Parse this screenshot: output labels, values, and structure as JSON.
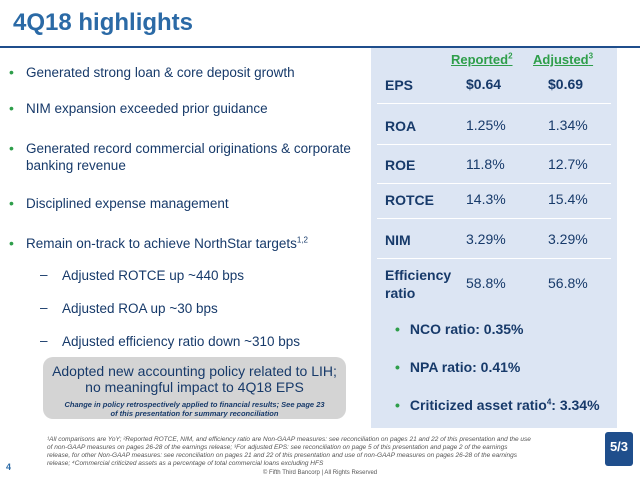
{
  "title": "4Q18 highlights",
  "bullets": [
    "Generated strong loan & core deposit growth",
    "NIM expansion exceeded prior guidance",
    "Generated record commercial originations & corporate",
    "banking revenue",
    "Disciplined expense management",
    "Remain on-track to achieve NorthStar targets",
    "1,2"
  ],
  "subbullets": [
    "Adjusted ROTCE up ~440 bps",
    "Adjusted ROA up ~30 bps",
    "Adjusted efficiency ratio down ~310 bps"
  ],
  "metrics": {
    "header_reported": "Reported",
    "header_reported_sup": "2",
    "header_adjusted": "Adjusted",
    "header_adjusted_sup": "3",
    "rows": [
      {
        "label": "EPS",
        "reported": "$0.64",
        "adjusted": "$0.69"
      },
      {
        "label": "ROA",
        "reported": "1.25%",
        "adjusted": "1.34%"
      },
      {
        "label": "ROE",
        "reported": "11.8%",
        "adjusted": "12.7%"
      },
      {
        "label": "ROTCE",
        "reported": "14.3%",
        "adjusted": "15.4%"
      },
      {
        "label": "NIM",
        "reported": "3.29%",
        "adjusted": "3.29%"
      },
      {
        "label": "Efficiency",
        "label2": "ratio",
        "reported": "58.8%",
        "adjusted": "56.8%"
      }
    ]
  },
  "ratios": [
    "NCO ratio: 0.35%",
    "NPA ratio: 0.41%",
    "Criticized asset ratio",
    "4",
    ": 3.34%"
  ],
  "callout": {
    "line1": "Adopted new accounting policy related to LIH;",
    "line2": "no meaningful impact to 4Q18 EPS",
    "note1": "Change in policy retrospectively applied to financial results; See page 23",
    "note2": "of this presentation for summary reconciliation"
  },
  "footnotes": [
    "¹All comparisons are YoY; ²Reported ROTCE, NIM, and efficiency ratio are Non-GAAP measures: see reconciliation on pages 21 and 22 of this presentation and the use",
    "of non-GAAP measures on pages 26-28 of the earnings release; ³For adjusted EPS: see reconciliation on page 5 of this presentation and page 2 of the earnings",
    "release, for other Non-GAAP measures: see reconciliation on pages 21 and 22 of this presentation and use of non-GAAP measures on pages 26-28 of the earnings",
    "release; ⁴Commercial criticized assets as a percentage of total commercial loans excluding HFS"
  ],
  "page_number": "4",
  "copyright": "© Fifth Third Bancorp | All Rights Reserved",
  "logo_text": "5/3",
  "bullet_symbol": "•",
  "dash_symbol": "–"
}
